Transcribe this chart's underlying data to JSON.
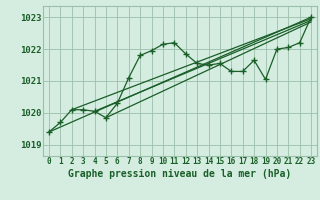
{
  "title": "Graphe pression niveau de la mer (hPa)",
  "bg_color": "#d4ede0",
  "grid_color": "#9bbfaa",
  "line_color": "#1a5e28",
  "ylabel_labels": [
    1019,
    1020,
    1021,
    1022,
    1023
  ],
  "xlim": [
    -0.5,
    23.5
  ],
  "ylim": [
    1018.65,
    1023.35
  ],
  "main_series": [
    [
      0,
      1019.4
    ],
    [
      1,
      1019.7
    ],
    [
      2,
      1020.1
    ],
    [
      3,
      1020.1
    ],
    [
      4,
      1020.05
    ],
    [
      5,
      1019.85
    ],
    [
      6,
      1020.3
    ],
    [
      7,
      1021.1
    ],
    [
      8,
      1021.8
    ],
    [
      9,
      1021.95
    ],
    [
      10,
      1022.15
    ],
    [
      11,
      1022.2
    ],
    [
      12,
      1021.85
    ],
    [
      13,
      1021.55
    ],
    [
      14,
      1021.5
    ],
    [
      15,
      1021.55
    ],
    [
      16,
      1021.3
    ],
    [
      17,
      1021.3
    ],
    [
      18,
      1021.65
    ],
    [
      19,
      1021.05
    ],
    [
      20,
      1022.0
    ],
    [
      21,
      1022.05
    ],
    [
      22,
      1022.2
    ],
    [
      23,
      1023.0
    ]
  ],
  "trend_lines": [
    [
      [
        0,
        1019.4
      ],
      [
        23,
        1023.0
      ]
    ],
    [
      [
        2,
        1020.1
      ],
      [
        23,
        1022.95
      ]
    ],
    [
      [
        4,
        1020.05
      ],
      [
        23,
        1022.9
      ]
    ],
    [
      [
        5,
        1019.85
      ],
      [
        23,
        1022.85
      ]
    ]
  ]
}
